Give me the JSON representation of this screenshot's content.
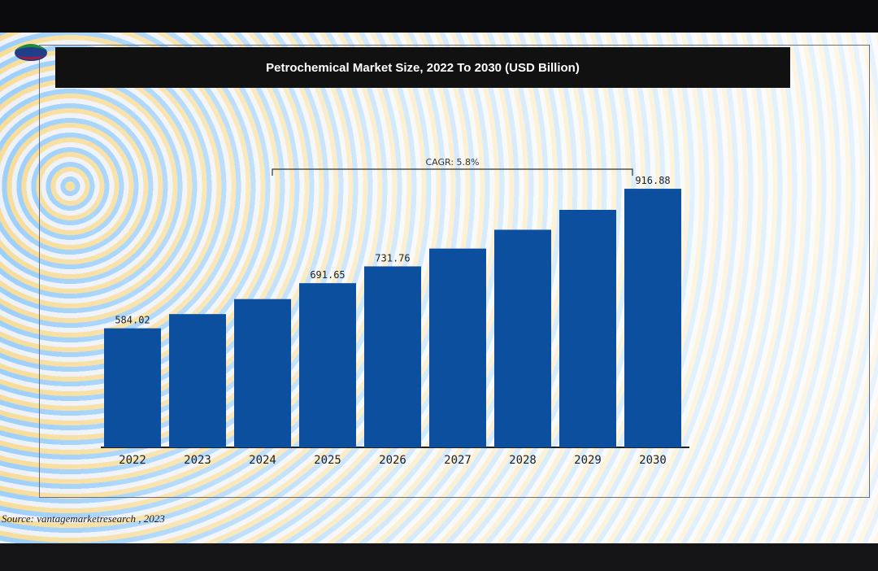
{
  "slide": {
    "source": "Source: vantagemarketresearch , 2023"
  },
  "chart_data": {
    "type": "bar",
    "title": "Petrochemical Market Size, 2022 To 2030 (USD Billion)",
    "categories": [
      "2022",
      "2023",
      "2024",
      "2025",
      "2026",
      "2027",
      "2028",
      "2029",
      "2030"
    ],
    "values": [
      584.02,
      617.9,
      653.7,
      691.65,
      731.76,
      774.2,
      819.1,
      866.6,
      916.88
    ],
    "data_labels": [
      "584.02",
      "",
      "",
      "691.65",
      "731.76",
      "",
      "",
      "",
      "916.88"
    ],
    "annotation": "CAGR: 5.8%",
    "ylim": [
      300,
      950
    ],
    "bar_color": "#0b4f9e",
    "xlabel": "",
    "ylabel": ""
  }
}
